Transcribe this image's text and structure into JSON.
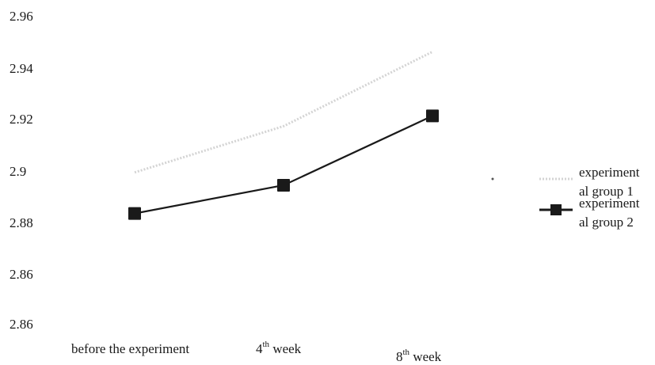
{
  "chart_data": {
    "type": "line",
    "categories": [
      {
        "main": "before the experiment",
        "sup": ""
      },
      {
        "main": "4",
        "sup": "th",
        "rest": " week"
      },
      {
        "main": "8",
        "sup": "th",
        "rest": " week"
      }
    ],
    "y_tick_labels": [
      "2.96",
      "2.94",
      "2.92",
      "2.9",
      "2.88",
      "2.86",
      "2.86"
    ],
    "ylim": [
      2.84,
      2.96
    ],
    "grid": false,
    "legend_position": "right",
    "series": [
      {
        "name_lines": [
          "experiment",
          "al group 1"
        ],
        "values": [
          2.899,
          2.917,
          2.946
        ],
        "color": "#d4d4d4",
        "style": "dotted",
        "marker": "none"
      },
      {
        "name_lines": [
          "experiment",
          "al group 2"
        ],
        "values": [
          2.883,
          2.894,
          2.921
        ],
        "color": "#1a1a1a",
        "style": "solid",
        "marker": "square"
      }
    ]
  }
}
